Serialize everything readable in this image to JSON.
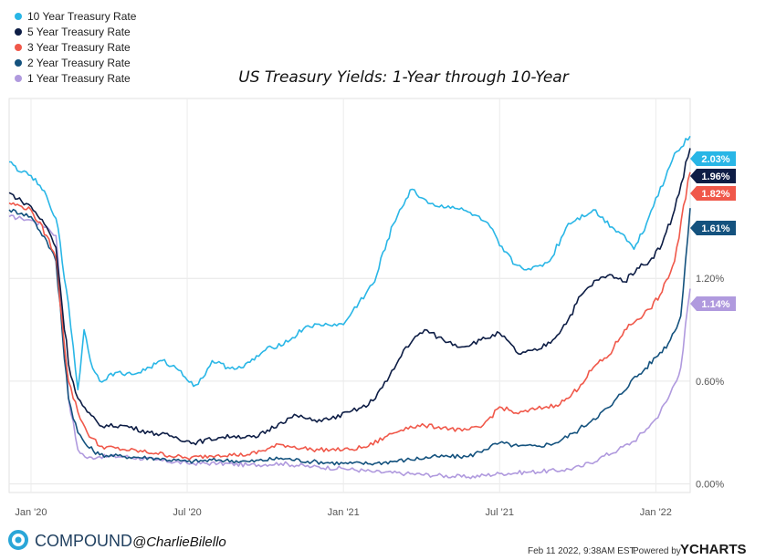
{
  "chart_data": {
    "type": "line",
    "title": "US Treasury Yields: 1-Year through 10-Year",
    "x_ticks": [
      {
        "label": "Jan '20",
        "t": 2020.0
      },
      {
        "label": "Jul '20",
        "t": 2020.5
      },
      {
        "label": "Jan '21",
        "t": 2021.0
      },
      {
        "label": "Jul '21",
        "t": 2021.5
      },
      {
        "label": "Jan '22",
        "t": 2022.0
      }
    ],
    "x_range": [
      2019.93,
      2022.11
    ],
    "y_ticks": [
      {
        "label": "0.00%",
        "v": 0.0
      },
      {
        "label": "0.60%",
        "v": 0.6
      },
      {
        "label": "1.20%",
        "v": 1.2
      }
    ],
    "ylim": [
      -0.05,
      2.25
    ],
    "legend_position": "top-left",
    "gridlines": true,
    "series": [
      {
        "name": "10 Year Treasury Rate",
        "color": "#29b6e6",
        "end_label": "2.03%",
        "t": [
          2019.93,
          2019.97,
          2020.0,
          2020.05,
          2020.08,
          2020.12,
          2020.15,
          2020.17,
          2020.19,
          2020.22,
          2020.27,
          2020.33,
          2020.38,
          2020.42,
          2020.48,
          2020.52,
          2020.55,
          2020.58,
          2020.63,
          2020.68,
          2020.75,
          2020.83,
          2020.88,
          2020.95,
          2021.0,
          2021.05,
          2021.1,
          2021.14,
          2021.18,
          2021.22,
          2021.25,
          2021.3,
          2021.35,
          2021.42,
          2021.47,
          2021.5,
          2021.55,
          2021.6,
          2021.66,
          2021.72,
          2021.8,
          2021.86,
          2021.9,
          2021.93,
          2021.97,
          2022.0,
          2022.03,
          2022.06,
          2022.11
        ],
        "values": [
          1.88,
          1.82,
          1.8,
          1.68,
          1.55,
          1.05,
          0.55,
          0.9,
          0.72,
          0.6,
          0.65,
          0.64,
          0.68,
          0.72,
          0.66,
          0.57,
          0.62,
          0.72,
          0.68,
          0.68,
          0.78,
          0.84,
          0.92,
          0.93,
          0.93,
          1.06,
          1.18,
          1.42,
          1.6,
          1.72,
          1.67,
          1.62,
          1.62,
          1.57,
          1.5,
          1.39,
          1.28,
          1.25,
          1.3,
          1.52,
          1.6,
          1.5,
          1.45,
          1.37,
          1.52,
          1.67,
          1.78,
          1.93,
          2.03
        ]
      },
      {
        "name": "5 Year Treasury Rate",
        "color": "#0d1d45",
        "end_label": "1.96%",
        "t": [
          2019.93,
          2019.97,
          2020.0,
          2020.05,
          2020.08,
          2020.12,
          2020.15,
          2020.18,
          2020.22,
          2020.3,
          2020.38,
          2020.45,
          2020.52,
          2020.6,
          2020.65,
          2020.72,
          2020.8,
          2020.85,
          2020.9,
          2020.96,
          2021.02,
          2021.08,
          2021.14,
          2021.2,
          2021.26,
          2021.32,
          2021.38,
          2021.44,
          2021.5,
          2021.56,
          2021.62,
          2021.67,
          2021.72,
          2021.76,
          2021.81,
          2021.86,
          2021.9,
          2021.94,
          2021.98,
          2022.02,
          2022.06,
          2022.11
        ],
        "values": [
          1.7,
          1.65,
          1.62,
          1.5,
          1.38,
          0.7,
          0.5,
          0.42,
          0.34,
          0.34,
          0.3,
          0.28,
          0.24,
          0.27,
          0.28,
          0.27,
          0.36,
          0.4,
          0.37,
          0.38,
          0.42,
          0.46,
          0.6,
          0.8,
          0.9,
          0.84,
          0.8,
          0.84,
          0.88,
          0.76,
          0.78,
          0.84,
          0.96,
          1.1,
          1.19,
          1.22,
          1.18,
          1.26,
          1.3,
          1.4,
          1.6,
          1.96
        ]
      },
      {
        "name": "3 Year Treasury Rate",
        "color": "#f0584a",
        "end_label": "1.82%",
        "t": [
          2019.93,
          2019.97,
          2020.0,
          2020.05,
          2020.08,
          2020.12,
          2020.15,
          2020.18,
          2020.22,
          2020.3,
          2020.4,
          2020.5,
          2020.6,
          2020.7,
          2020.8,
          2020.9,
          2020.96,
          2021.02,
          2021.08,
          2021.14,
          2021.2,
          2021.26,
          2021.32,
          2021.38,
          2021.44,
          2021.5,
          2021.56,
          2021.62,
          2021.68,
          2021.72,
          2021.76,
          2021.8,
          2021.85,
          2021.9,
          2021.94,
          2021.98,
          2022.02,
          2022.06,
          2022.11
        ],
        "values": [
          1.64,
          1.62,
          1.6,
          1.45,
          1.32,
          0.6,
          0.42,
          0.3,
          0.22,
          0.2,
          0.18,
          0.15,
          0.17,
          0.17,
          0.23,
          0.2,
          0.2,
          0.2,
          0.22,
          0.28,
          0.33,
          0.34,
          0.33,
          0.31,
          0.33,
          0.45,
          0.41,
          0.44,
          0.46,
          0.5,
          0.58,
          0.68,
          0.75,
          0.9,
          0.96,
          1.02,
          1.12,
          1.3,
          1.82
        ]
      },
      {
        "name": "2 Year Treasury Rate",
        "color": "#14527e",
        "end_label": "1.61%",
        "t": [
          2019.93,
          2019.97,
          2020.0,
          2020.05,
          2020.08,
          2020.12,
          2020.15,
          2020.18,
          2020.22,
          2020.3,
          2020.4,
          2020.5,
          2020.6,
          2020.7,
          2020.8,
          2020.9,
          2021.0,
          2021.1,
          2021.2,
          2021.3,
          2021.4,
          2021.45,
          2021.5,
          2021.56,
          2021.62,
          2021.68,
          2021.74,
          2021.8,
          2021.86,
          2021.92,
          2021.96,
          2022.0,
          2022.04,
          2022.08,
          2022.11
        ],
        "values": [
          1.6,
          1.58,
          1.56,
          1.42,
          1.3,
          0.5,
          0.3,
          0.22,
          0.17,
          0.16,
          0.15,
          0.13,
          0.14,
          0.13,
          0.15,
          0.13,
          0.12,
          0.12,
          0.14,
          0.16,
          0.16,
          0.2,
          0.24,
          0.22,
          0.22,
          0.24,
          0.3,
          0.38,
          0.46,
          0.6,
          0.66,
          0.74,
          0.82,
          0.98,
          1.61
        ]
      },
      {
        "name": "1 Year Treasury Rate",
        "color": "#b09ade",
        "end_label": "1.14%",
        "t": [
          2019.93,
          2019.97,
          2020.0,
          2020.05,
          2020.08,
          2020.12,
          2020.15,
          2020.18,
          2020.22,
          2020.3,
          2020.4,
          2020.5,
          2020.6,
          2020.7,
          2020.8,
          2020.9,
          2021.0,
          2021.1,
          2021.2,
          2021.3,
          2021.4,
          2021.5,
          2021.6,
          2021.7,
          2021.76,
          2021.82,
          2021.88,
          2021.93,
          2021.97,
          2022.0,
          2022.04,
          2022.08,
          2022.11
        ],
        "values": [
          1.56,
          1.55,
          1.54,
          1.5,
          1.45,
          0.5,
          0.2,
          0.15,
          0.16,
          0.16,
          0.14,
          0.12,
          0.12,
          0.11,
          0.12,
          0.1,
          0.09,
          0.07,
          0.06,
          0.05,
          0.04,
          0.06,
          0.07,
          0.08,
          0.1,
          0.15,
          0.2,
          0.25,
          0.32,
          0.38,
          0.5,
          0.68,
          1.14
        ]
      }
    ],
    "y_right_label": "1.20%"
  },
  "footer": {
    "brand": "COMPOUND",
    "handle": "@CharlieBilello",
    "timestamp": "Feb 11 2022, 9:38AM EST.",
    "powered_by": "Powered by",
    "provider": "YCHARTS"
  }
}
